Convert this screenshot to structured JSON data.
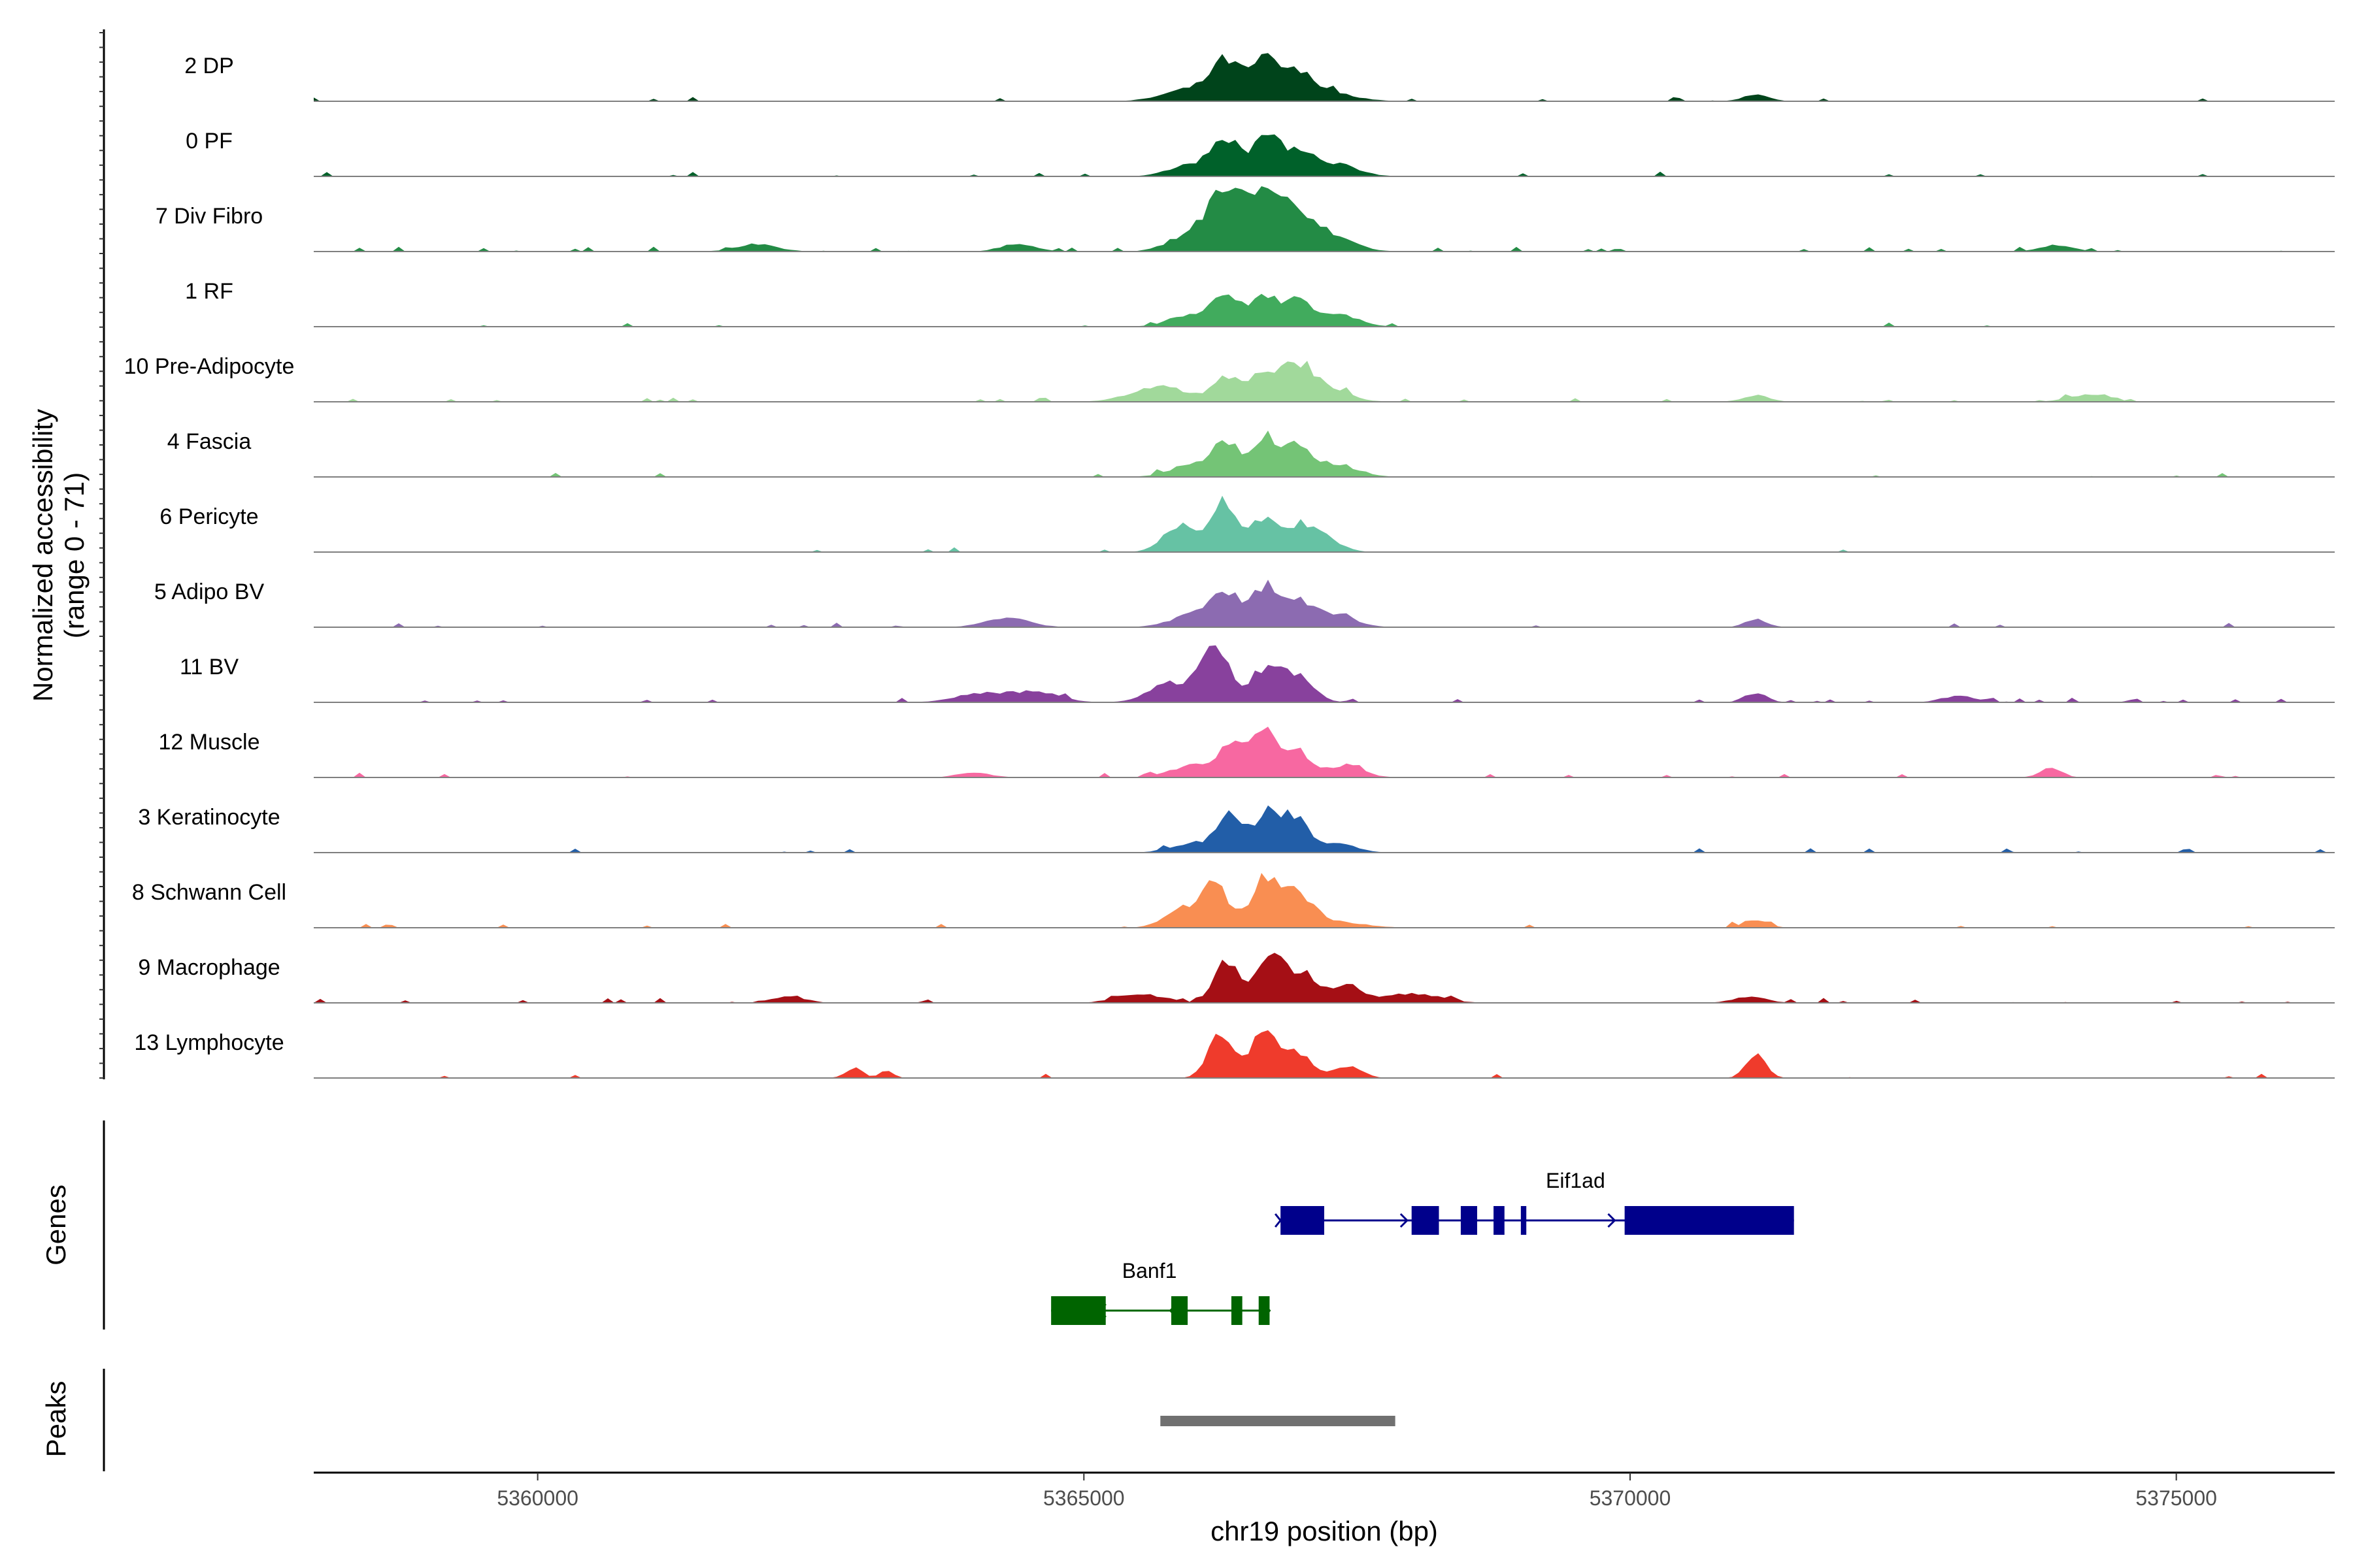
{
  "chart_data": {
    "type": "area",
    "title": "",
    "ylabel": "Normalized accessibility",
    "ylabel_range": "(range 0 - 71)",
    "ylim": [
      0,
      71
    ],
    "xlabel": "chr19 position (bp)",
    "xlim": [
      5357950,
      5376450
    ],
    "xticks": [
      {
        "value": 5360000,
        "label": "5360000"
      },
      {
        "value": 5365000,
        "label": "5365000"
      },
      {
        "value": 5370000,
        "label": "5370000"
      },
      {
        "value": 5375000,
        "label": "5375000"
      }
    ],
    "tracks": [
      {
        "name": "2 DP",
        "color": "#00441b",
        "noise": 0.05,
        "peaks": [
          [
            5366300,
            0.55,
            130
          ],
          [
            5366650,
            0.6,
            130
          ],
          [
            5366950,
            0.35,
            150
          ],
          [
            5366000,
            0.2,
            250
          ],
          [
            5367200,
            0.15,
            250
          ],
          [
            5371150,
            0.1,
            120
          ]
        ]
      },
      {
        "name": "0 PF",
        "color": "#00612a",
        "noise": 0.04,
        "peaks": [
          [
            5366300,
            0.55,
            120
          ],
          [
            5366650,
            0.6,
            120
          ],
          [
            5366950,
            0.4,
            140
          ],
          [
            5366000,
            0.2,
            200
          ],
          [
            5367300,
            0.2,
            200
          ]
        ]
      },
      {
        "name": "7 Div Fibro",
        "color": "#238b45",
        "noise": 0.12,
        "peaks": [
          [
            5366300,
            0.85,
            150
          ],
          [
            5366650,
            0.85,
            150
          ],
          [
            5366950,
            0.5,
            180
          ],
          [
            5366000,
            0.3,
            200
          ],
          [
            5367300,
            0.2,
            200
          ],
          [
            5362000,
            0.12,
            180
          ],
          [
            5364400,
            0.12,
            160
          ],
          [
            5373900,
            0.1,
            150
          ]
        ]
      },
      {
        "name": "1 RF",
        "color": "#41ab5d",
        "noise": 0.03,
        "peaks": [
          [
            5366300,
            0.45,
            120
          ],
          [
            5366650,
            0.5,
            120
          ],
          [
            5366950,
            0.4,
            120
          ],
          [
            5366000,
            0.2,
            200
          ],
          [
            5367300,
            0.2,
            200
          ]
        ]
      },
      {
        "name": "10 Pre-Adipocyte",
        "color": "#a1d99b",
        "noise": 0.1,
        "peaks": [
          [
            5366300,
            0.4,
            120
          ],
          [
            5366650,
            0.45,
            120
          ],
          [
            5366950,
            0.5,
            130
          ],
          [
            5365700,
            0.25,
            250
          ],
          [
            5367200,
            0.25,
            200
          ],
          [
            5374200,
            0.12,
            180
          ],
          [
            5371150,
            0.1,
            120
          ]
        ]
      },
      {
        "name": "4 Fascia",
        "color": "#74c476",
        "noise": 0.04,
        "peaks": [
          [
            5366300,
            0.5,
            120
          ],
          [
            5366650,
            0.6,
            120
          ],
          [
            5366950,
            0.45,
            130
          ],
          [
            5366000,
            0.2,
            200
          ],
          [
            5367300,
            0.2,
            200
          ]
        ]
      },
      {
        "name": "6 Pericyte",
        "color": "#66c2a4",
        "noise": 0.03,
        "peaks": [
          [
            5366300,
            0.8,
            110
          ],
          [
            5366650,
            0.5,
            120
          ],
          [
            5365900,
            0.45,
            160
          ],
          [
            5366950,
            0.35,
            150
          ],
          [
            5367200,
            0.2,
            150
          ]
        ]
      },
      {
        "name": "5 Adipo BV",
        "color": "#8c6bb1",
        "noise": 0.05,
        "peaks": [
          [
            5366300,
            0.5,
            130
          ],
          [
            5366650,
            0.6,
            120
          ],
          [
            5366950,
            0.4,
            140
          ],
          [
            5366000,
            0.2,
            200
          ],
          [
            5364300,
            0.15,
            200
          ],
          [
            5367300,
            0.2,
            180
          ],
          [
            5371150,
            0.12,
            100
          ]
        ]
      },
      {
        "name": "11 BV",
        "color": "#88419d",
        "noise": 0.12,
        "peaks": [
          [
            5366200,
            0.85,
            130
          ],
          [
            5366650,
            0.5,
            130
          ],
          [
            5366950,
            0.4,
            150
          ],
          [
            5365800,
            0.3,
            200
          ],
          [
            5364100,
            0.15,
            250
          ],
          [
            5364600,
            0.15,
            200
          ],
          [
            5371150,
            0.15,
            100
          ],
          [
            5373000,
            0.1,
            150
          ]
        ]
      },
      {
        "name": "12 Muscle",
        "color": "#f768a1",
        "noise": 0.08,
        "peaks": [
          [
            5366350,
            0.55,
            110
          ],
          [
            5366650,
            0.75,
            110
          ],
          [
            5366950,
            0.4,
            130
          ],
          [
            5366000,
            0.2,
            200
          ],
          [
            5367400,
            0.2,
            160
          ],
          [
            5373850,
            0.15,
            100
          ],
          [
            5364000,
            0.08,
            150
          ]
        ]
      },
      {
        "name": "3 Keratinocyte",
        "color": "#225ea8",
        "noise": 0.04,
        "peaks": [
          [
            5366350,
            0.55,
            120
          ],
          [
            5366700,
            0.6,
            120
          ],
          [
            5366950,
            0.45,
            120
          ],
          [
            5366000,
            0.15,
            200
          ],
          [
            5367300,
            0.15,
            180
          ]
        ]
      },
      {
        "name": "8 Schwann Cell",
        "color": "#f98e52",
        "noise": 0.07,
        "peaks": [
          [
            5366200,
            0.65,
            120
          ],
          [
            5366650,
            0.8,
            120
          ],
          [
            5366950,
            0.5,
            140
          ],
          [
            5365900,
            0.3,
            160
          ],
          [
            5367300,
            0.1,
            250
          ],
          [
            5371150,
            0.12,
            110
          ]
        ]
      },
      {
        "name": "9 Macrophage",
        "color": "#a50f15",
        "noise": 0.12,
        "peaks": [
          [
            5366300,
            0.7,
            110
          ],
          [
            5366700,
            0.85,
            110
          ],
          [
            5367000,
            0.5,
            130
          ],
          [
            5367400,
            0.3,
            140
          ],
          [
            5365500,
            0.15,
            200
          ],
          [
            5368000,
            0.15,
            250
          ],
          [
            5362300,
            0.1,
            150
          ],
          [
            5371100,
            0.1,
            150
          ]
        ]
      },
      {
        "name": "13 Lymphocyte",
        "color": "#ef3b2c",
        "noise": 0.05,
        "peaks": [
          [
            5366250,
            0.7,
            110
          ],
          [
            5366650,
            0.75,
            110
          ],
          [
            5366950,
            0.4,
            120
          ],
          [
            5367400,
            0.2,
            130
          ],
          [
            5371150,
            0.4,
            90
          ],
          [
            5362900,
            0.15,
            80
          ],
          [
            5363200,
            0.12,
            60
          ]
        ]
      }
    ],
    "genes_label": "Genes",
    "genes": [
      {
        "name": "Eif1ad",
        "color": "#00008b",
        "strand": "+",
        "start": 5366800,
        "end": 5371500,
        "exons": [
          [
            5366800,
            5367200
          ],
          [
            5368000,
            5368250
          ],
          [
            5368450,
            5368600
          ],
          [
            5368750,
            5368850
          ],
          [
            5369000,
            5369050
          ],
          [
            5369950,
            5371500
          ]
        ]
      },
      {
        "name": "Banf1",
        "color": "#006400",
        "strand": "-",
        "start": 5364700,
        "end": 5366700,
        "exons": [
          [
            5364700,
            5365200
          ],
          [
            5365800,
            5365950
          ],
          [
            5366350,
            5366450
          ],
          [
            5366600,
            5366700
          ]
        ]
      }
    ],
    "peaks_label": "Peaks",
    "peak_regions": [
      {
        "start": 5365700,
        "end": 5367850,
        "color": "#707070"
      }
    ]
  }
}
